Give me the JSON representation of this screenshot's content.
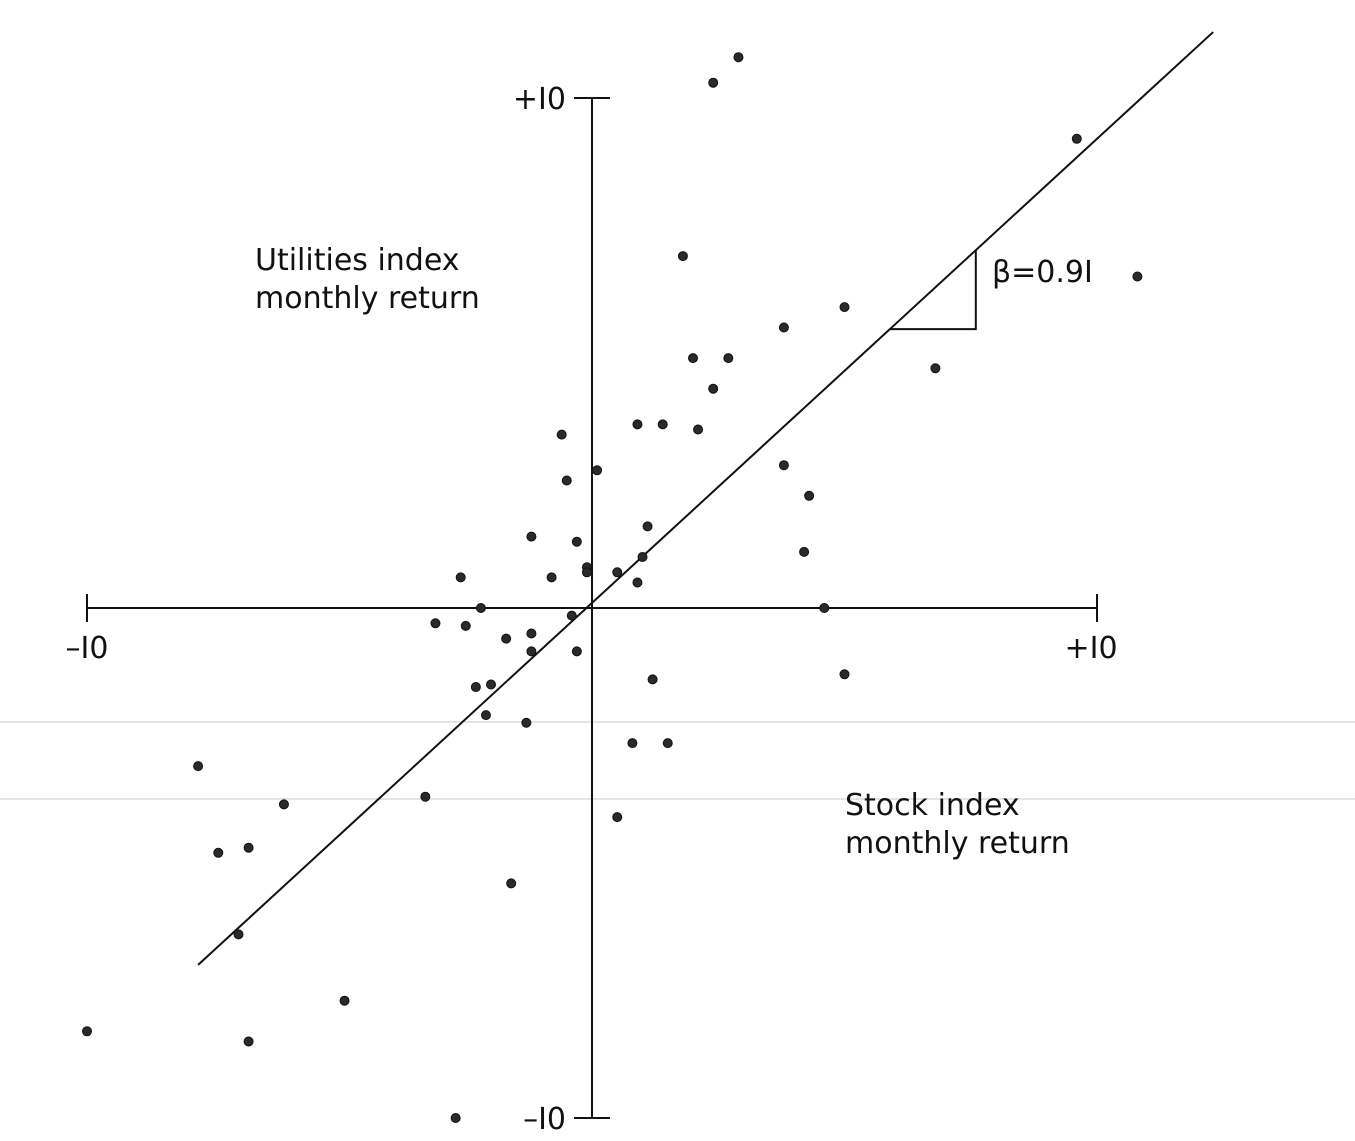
{
  "chart_data": {
    "type": "scatter",
    "title": "",
    "xlabel": "Stock index monthly return",
    "ylabel": "Utilities index monthly return",
    "xlim": [
      -10,
      10
    ],
    "ylim": [
      -10,
      10
    ],
    "x_tick_labels": {
      "min": "–I0",
      "max": "+I0"
    },
    "y_tick_labels": {
      "min": "–I0",
      "max": "+I0"
    },
    "annotation": "β=0.9I",
    "fit_line": {
      "slope": 0.91,
      "intercept": 0.1,
      "x_start": -7.8,
      "x_end": 12.3
    },
    "slope_triangle": {
      "x1": 5.9,
      "x2": 7.6
    },
    "grid": false,
    "legend": "none",
    "points": [
      {
        "x": 2.4,
        "y": 10.3
      },
      {
        "x": 2.9,
        "y": 10.8
      },
      {
        "x": 9.6,
        "y": 9.2
      },
      {
        "x": 10.8,
        "y": 6.5
      },
      {
        "x": 1.8,
        "y": 6.9
      },
      {
        "x": 5.0,
        "y": 5.9
      },
      {
        "x": 3.8,
        "y": 5.5
      },
      {
        "x": 2.0,
        "y": 4.9
      },
      {
        "x": 2.7,
        "y": 4.9
      },
      {
        "x": 2.4,
        "y": 4.3
      },
      {
        "x": 6.8,
        "y": 4.7
      },
      {
        "x": 0.9,
        "y": 3.6
      },
      {
        "x": 1.4,
        "y": 3.6
      },
      {
        "x": 2.1,
        "y": 3.5
      },
      {
        "x": -0.6,
        "y": 3.4
      },
      {
        "x": 0.1,
        "y": 2.7
      },
      {
        "x": -0.5,
        "y": 2.5
      },
      {
        "x": 3.8,
        "y": 2.8
      },
      {
        "x": 4.3,
        "y": 2.2
      },
      {
        "x": 1.1,
        "y": 1.6
      },
      {
        "x": -1.2,
        "y": 1.4
      },
      {
        "x": -0.3,
        "y": 1.3
      },
      {
        "x": 4.2,
        "y": 1.1
      },
      {
        "x": 1.0,
        "y": 1.0
      },
      {
        "x": -0.1,
        "y": 0.8
      },
      {
        "x": -0.1,
        "y": 0.7
      },
      {
        "x": 0.5,
        "y": 0.7
      },
      {
        "x": -2.6,
        "y": 0.6
      },
      {
        "x": -0.8,
        "y": 0.6
      },
      {
        "x": 0.9,
        "y": 0.5
      },
      {
        "x": -2.2,
        "y": 0.0
      },
      {
        "x": 4.6,
        "y": 0.0
      },
      {
        "x": -0.4,
        "y": -0.15
      },
      {
        "x": -3.1,
        "y": -0.3
      },
      {
        "x": -2.5,
        "y": -0.35
      },
      {
        "x": -1.7,
        "y": -0.6
      },
      {
        "x": -1.2,
        "y": -0.5
      },
      {
        "x": -1.2,
        "y": -0.85
      },
      {
        "x": -0.3,
        "y": -0.85
      },
      {
        "x": 5.0,
        "y": -1.3
      },
      {
        "x": 1.2,
        "y": -1.4
      },
      {
        "x": -2.0,
        "y": -1.5
      },
      {
        "x": -2.3,
        "y": -1.55
      },
      {
        "x": -2.1,
        "y": -2.1
      },
      {
        "x": -1.3,
        "y": -2.25
      },
      {
        "x": 0.8,
        "y": -2.65
      },
      {
        "x": 1.5,
        "y": -2.65
      },
      {
        "x": -7.8,
        "y": -3.1
      },
      {
        "x": -6.1,
        "y": -3.85
      },
      {
        "x": -3.3,
        "y": -3.7
      },
      {
        "x": 0.5,
        "y": -4.1
      },
      {
        "x": -7.4,
        "y": -4.8
      },
      {
        "x": -6.8,
        "y": -4.7
      },
      {
        "x": -1.6,
        "y": -5.4
      },
      {
        "x": -7.0,
        "y": -6.4
      },
      {
        "x": -4.9,
        "y": -7.7
      },
      {
        "x": -10.0,
        "y": -8.3
      },
      {
        "x": -6.8,
        "y": -8.5
      },
      {
        "x": -2.7,
        "y": -10.0
      }
    ]
  }
}
